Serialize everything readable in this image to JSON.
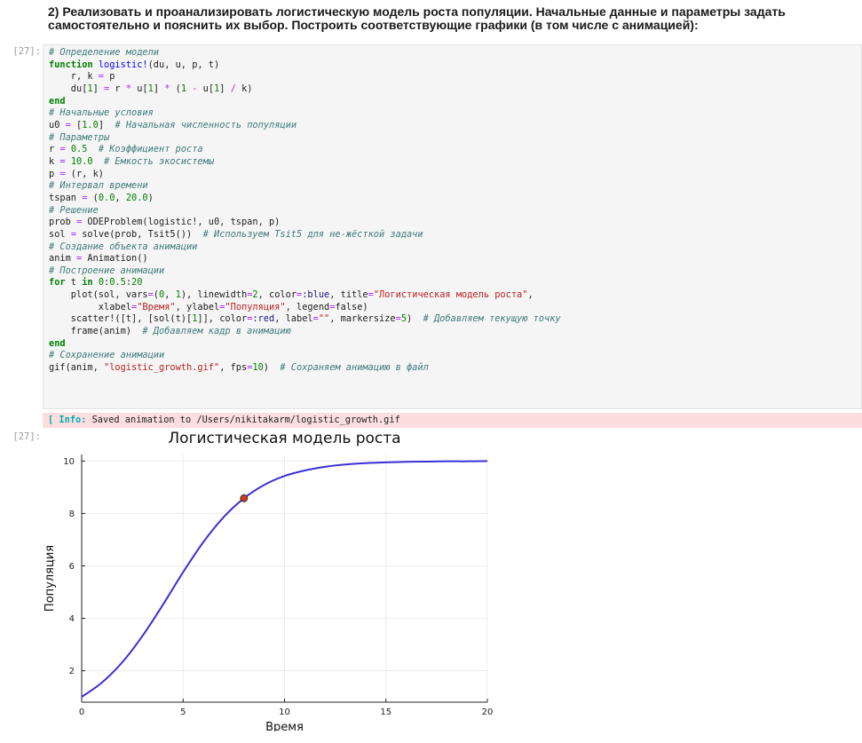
{
  "markdown": {
    "text": "2) Реализовать и проанализировать логистическую модель роста популяции. Начальные данные и параметры задать самостоятельно и пояснить их выбор. Построить соответствующие графики (в том числе с анимацией):"
  },
  "cell": {
    "prompt_in": "[27]:",
    "prompt_out": "[27]:",
    "output_label": "[ Info:",
    "output_message": " Saved animation to /Users/nikitakarm/logistic_growth.gif"
  },
  "code_lines": [
    "# Определение модели",
    "function logistic!(du, u, p, t)",
    "    r, k = p",
    "    du[1] = r * u[1] * (1 - u[1] / k)",
    "end",
    "# Начальные условия",
    "u0 = [1.0]  # Начальная численность популяции",
    "# Параметры",
    "r = 0.5  # Коэффициент роста",
    "k = 10.0  # Емкость экосистемы",
    "p = (r, k)",
    "# Интервал времени",
    "tspan = (0.0, 20.0)",
    "# Решение",
    "prob = ODEProblem(logistic!, u0, tspan, p)",
    "sol = solve(prob, Tsit5())  # Используем Tsit5 для не-жёсткой задачи",
    "# Создание объекта анимации",
    "anim = Animation()",
    "# Построение анимации",
    "for t in 0:0.5:20",
    "    plot(sol, vars=(0, 1), linewidth=2, color=:blue, title=\"Логистическая модель роста\",",
    "         xlabel=\"Время\", ylabel=\"Популяция\", legend=false)",
    "    scatter!([t], [sol(t)[1]], color=:red, label=\"\", markersize=5)  # Добавляем текущую точку",
    "    frame(anim)  # Добавляем кадр в анимацию",
    "end",
    "# Сохранение анимации",
    "gif(anim, \"logistic_growth.gif\", fps=10)  # Сохраняем анимацию в файл"
  ],
  "chart_data": {
    "type": "line",
    "title": "Логистическая модель роста",
    "xlabel": "Время",
    "ylabel": "Популяция",
    "xlim": [
      0,
      20
    ],
    "ylim": [
      0.8,
      10.25
    ],
    "x_ticks": [
      0,
      5,
      10,
      15,
      20
    ],
    "y_ticks": [
      2,
      4,
      6,
      8,
      10
    ],
    "grid": true,
    "legend": "none",
    "series": [
      {
        "x": [
          0,
          1,
          2,
          3,
          4,
          5,
          6,
          7,
          8,
          9,
          10,
          11,
          12,
          13,
          14,
          15,
          16,
          17,
          18,
          19,
          20
        ],
        "y": [
          1.0,
          1.55,
          2.32,
          3.33,
          4.51,
          5.76,
          6.91,
          7.86,
          8.58,
          9.09,
          9.43,
          9.64,
          9.78,
          9.87,
          9.92,
          9.95,
          9.97,
          9.98,
          9.99,
          9.99,
          10.0
        ],
        "color": "#3b2fd6"
      }
    ],
    "marker": {
      "x": 8,
      "y": 8.58,
      "color": "#c83c23"
    }
  }
}
